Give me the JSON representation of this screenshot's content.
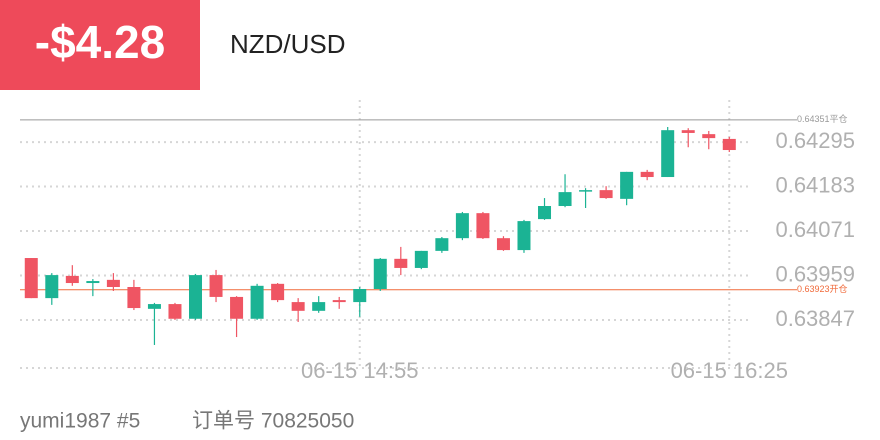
{
  "header": {
    "pnl": "-$4.28",
    "symbol": "NZD/USD"
  },
  "footer": {
    "account": "yumi1987 #5",
    "order": "订单号 70825050"
  },
  "chart_data": {
    "type": "candlestick",
    "categories": [
      null,
      null,
      null,
      null,
      null,
      null,
      null,
      null,
      null,
      null,
      null,
      null,
      null,
      null,
      null,
      null,
      "06-15 14:55",
      null,
      null,
      null,
      null,
      null,
      null,
      null,
      null,
      null,
      null,
      null,
      null,
      null,
      null,
      null,
      null,
      null,
      "06-15 16:25"
    ],
    "open": [
      0.64003,
      0.63902,
      0.63958,
      0.6394,
      0.63948,
      0.6393,
      0.63875,
      0.63887,
      0.6385,
      0.6396,
      0.63905,
      0.6385,
      0.63938,
      0.63892,
      0.6387,
      0.63897,
      0.63892,
      0.63925,
      0.64001,
      0.63978,
      0.64021,
      0.64053,
      0.64116,
      0.64053,
      0.64023,
      0.64101,
      0.64134,
      0.64172,
      0.64174,
      0.64152,
      0.6422,
      0.64207,
      0.64325,
      0.64315,
      0.64303
    ],
    "high": [
      0.64003,
      0.63965,
      0.63985,
      0.6395,
      0.63965,
      0.63948,
      0.6389,
      0.6389,
      0.63963,
      0.63973,
      0.63907,
      0.63938,
      0.6394,
      0.63902,
      0.63907,
      0.63905,
      0.6393,
      0.64003,
      0.64031,
      0.64021,
      0.64056,
      0.64119,
      0.64119,
      0.64058,
      0.64099,
      0.64154,
      0.64214,
      0.64179,
      0.64184,
      0.6422,
      0.64225,
      0.64333,
      0.6433,
      0.64323,
      0.64308
    ],
    "low": [
      0.63902,
      0.63885,
      0.63933,
      0.63907,
      0.6392,
      0.63872,
      0.63784,
      0.63847,
      0.63847,
      0.63892,
      0.63804,
      0.63847,
      0.63892,
      0.63842,
      0.63865,
      0.63875,
      0.63855,
      0.6392,
      0.6396,
      0.63975,
      0.64016,
      0.64048,
      0.64051,
      0.64021,
      0.64016,
      0.64099,
      0.64131,
      0.64129,
      0.64152,
      0.64136,
      0.64199,
      0.64207,
      0.64282,
      0.64277,
      0.6427
    ],
    "close": [
      0.63902,
      0.6396,
      0.6394,
      0.63945,
      0.6393,
      0.63877,
      0.63887,
      0.6385,
      0.6396,
      0.63905,
      0.6385,
      0.63933,
      0.63897,
      0.6387,
      0.63892,
      0.63892,
      0.63925,
      0.64001,
      0.63978,
      0.64021,
      0.64053,
      0.64116,
      0.64053,
      0.64023,
      0.64096,
      0.64134,
      0.64169,
      0.64174,
      0.64154,
      0.6422,
      0.64207,
      0.64325,
      0.64318,
      0.64305,
      0.64275
    ],
    "up_color": "#1bb394",
    "down_color": "#ef5563",
    "ylim": [
      0.63726,
      0.64401
    ],
    "yticks": [
      0.63847,
      0.63959,
      0.64071,
      0.64183,
      0.64295
    ],
    "grid": true,
    "close_line": {
      "value": 0.64351,
      "label": "平仓",
      "color": "#999999"
    },
    "open_line": {
      "value": 0.63923,
      "label": "开仓",
      "color": "#f06a3a"
    }
  }
}
